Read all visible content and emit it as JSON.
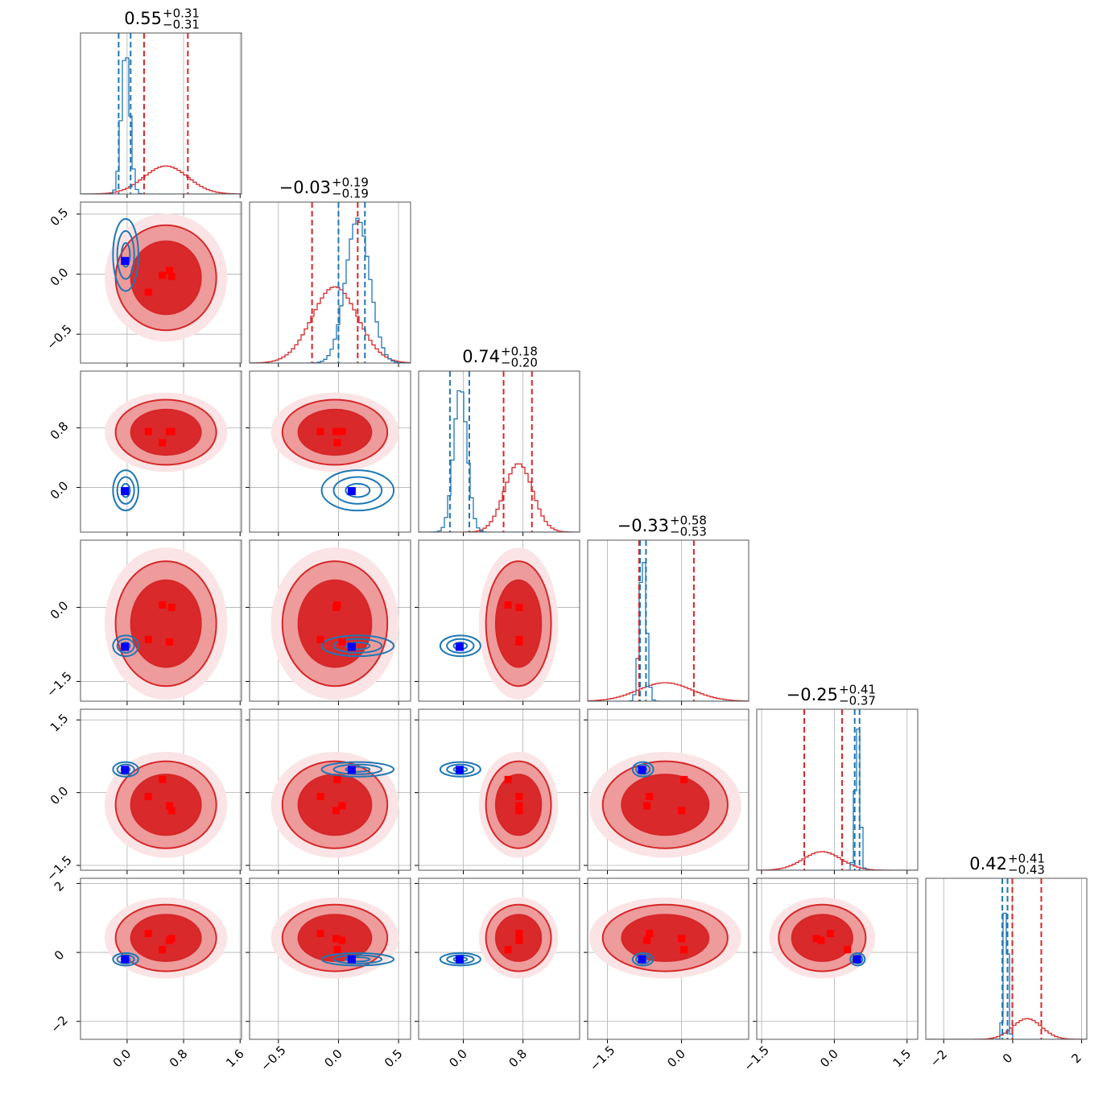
{
  "chart_data": {
    "type": "corner",
    "params": [
      {
        "title": "0.55",
        "title_upper": "+0.31",
        "title_lower": "−0.31",
        "lim": [
          -0.66,
          1.62
        ],
        "ticks": [
          {
            "value": 0,
            "label": "0.0"
          },
          0.8,
          1.6
        ]
      },
      {
        "title": "−0.03",
        "title_upper": "+0.19",
        "title_lower": "−0.19",
        "lim": [
          -0.74,
          0.6
        ],
        "ticks": [
          {
            "value": -0.5,
            "label": "−0.5"
          },
          {
            "value": 0,
            "label": "0.0"
          },
          0.5
        ]
      },
      {
        "title": "0.74",
        "title_upper": "+0.18",
        "title_lower": "−0.20",
        "lim": [
          -0.6,
          1.56
        ],
        "ticks": [
          {
            "value": 0,
            "label": "0.0"
          },
          0.8
        ]
      },
      {
        "title": "−0.33",
        "title_upper": "+0.58",
        "title_lower": "−0.53",
        "lim": [
          -1.9,
          1.36
        ],
        "ticks": [
          {
            "value": -1.5,
            "label": "−1.5"
          },
          {
            "value": 0,
            "label": "0.0"
          }
        ]
      },
      {
        "title": "−0.25",
        "title_upper": "+0.41",
        "title_lower": "−0.37",
        "lim": [
          -1.6,
          1.72
        ],
        "ticks": [
          {
            "value": -1.5,
            "label": "−1.5"
          },
          {
            "value": 0,
            "label": "0.0"
          },
          1.5
        ]
      },
      {
        "title": "0.42",
        "title_upper": "+0.41",
        "title_lower": "−0.43",
        "lim": [
          -2.52,
          2.15
        ],
        "ticks": [
          {
            "value": -2,
            "label": "−2"
          },
          0,
          2
        ]
      }
    ],
    "series": [
      {
        "color": "#d62728",
        "mean": [
          0.55,
          -0.03,
          0.74,
          -0.33,
          -0.25,
          0.42
        ],
        "std": [
          0.31,
          0.19,
          0.19,
          0.55,
          0.39,
          0.42
        ],
        "quantiles": [
          [
            0.24,
            0.86
          ],
          [
            -0.22,
            0.16
          ],
          [
            0.54,
            0.92
          ],
          [
            -0.86,
            0.25
          ],
          [
            -0.62,
            0.16
          ],
          [
            -0.01,
            0.83
          ]
        ],
        "points": [
          [
            0.3,
            -0.15,
            0.75,
            -0.65,
            -0.08,
            0.55
          ],
          [
            0.5,
            -0.01,
            0.6,
            0.05,
            0.27,
            0.08
          ],
          [
            0.6,
            0.03,
            0.75,
            -0.7,
            -0.27,
            0.35
          ],
          [
            0.63,
            -0.02,
            0.75,
            0.0,
            -0.37,
            0.4
          ]
        ]
      },
      {
        "color": "#1f77b4",
        "mean": [
          -0.02,
          0.16,
          -0.04,
          -0.78,
          0.48,
          -0.2
        ],
        "std": [
          0.06,
          0.1,
          0.09,
          0.07,
          0.05,
          0.06
        ],
        "quantiles": [
          [
            -0.12,
            0.05
          ],
          [
            0.0,
            0.22
          ],
          [
            -0.18,
            0.08
          ],
          [
            -0.84,
            -0.72
          ],
          [
            0.42,
            0.52
          ],
          [
            -0.3,
            -0.15
          ]
        ],
        "points": [
          [
            -0.03,
            0.11,
            -0.05,
            -0.8,
            0.47,
            -0.2
          ]
        ]
      }
    ],
    "grid": true
  }
}
